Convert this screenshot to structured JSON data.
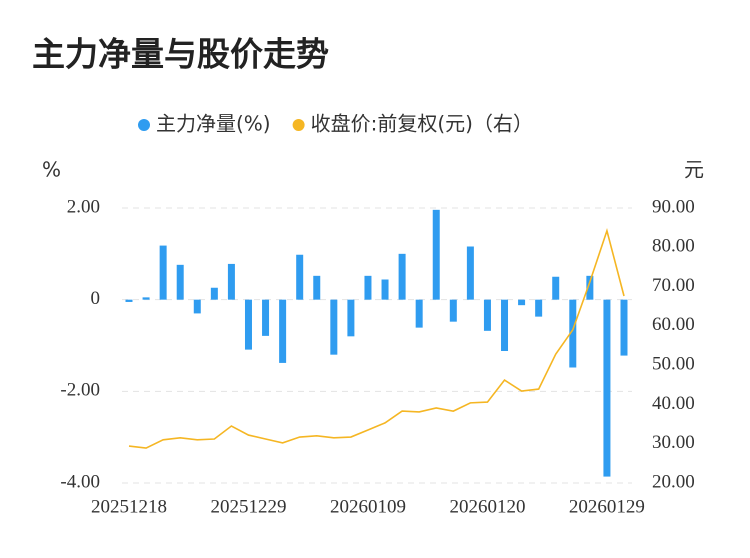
{
  "chart_data": {
    "type": "bar-line",
    "title": "主力净量与股价走势",
    "y_label": "%",
    "y2_label": "元",
    "categories": [
      "20251218",
      null,
      null,
      null,
      null,
      null,
      null,
      "20251229",
      null,
      null,
      null,
      null,
      null,
      null,
      "20260109",
      null,
      null,
      null,
      null,
      null,
      null,
      "20260120",
      null,
      null,
      null,
      null,
      null,
      null,
      "20260129",
      null
    ],
    "series": [
      {
        "name": "主力净量(%)",
        "color": "#2f9cf0",
        "type": "bar",
        "values": [
          -0.05,
          0.05,
          1.18,
          0.76,
          -0.3,
          0.26,
          0.78,
          -1.09,
          -0.79,
          -1.38,
          0.98,
          0.52,
          -1.2,
          -0.8,
          0.52,
          0.44,
          1.0,
          -0.61,
          1.96,
          -0.48,
          1.16,
          -0.68,
          -1.12,
          -0.12,
          -0.37,
          0.5,
          -1.48,
          0.52,
          -3.86,
          -1.22
        ]
      },
      {
        "name": "收盘价:前复权(元)（右）",
        "color": "#f5b623",
        "type": "line",
        "axis": "y2",
        "values": [
          29.4,
          28.9,
          31.0,
          31.5,
          31.0,
          31.2,
          34.5,
          32.2,
          31.2,
          30.2,
          31.7,
          32.0,
          31.5,
          31.7,
          33.5,
          35.3,
          38.3,
          38.1,
          39.1,
          38.3,
          40.4,
          40.6,
          46.2,
          43.4,
          43.9,
          52.8,
          59.0,
          71.2,
          84.2,
          67.6
        ]
      }
    ],
    "ylim": [
      -4,
      2
    ],
    "yticks": [
      {
        "value": 2,
        "label": "2.00"
      },
      0,
      {
        "value": -2,
        "label": "-2.00"
      },
      {
        "value": -4,
        "label": "-4.00"
      }
    ],
    "y2lim": [
      20,
      90
    ],
    "y2ticks": [
      {
        "value": 90,
        "label": "90.00"
      },
      {
        "value": 80,
        "label": "80.00"
      },
      {
        "value": 70,
        "label": "70.00"
      },
      {
        "value": 60,
        "label": "60.00"
      },
      {
        "value": 50,
        "label": "50.00"
      },
      {
        "value": 40,
        "label": "40.00"
      },
      {
        "value": 30,
        "label": "30.00"
      },
      {
        "value": 20,
        "label": "20.00"
      }
    ],
    "grid": true
  }
}
